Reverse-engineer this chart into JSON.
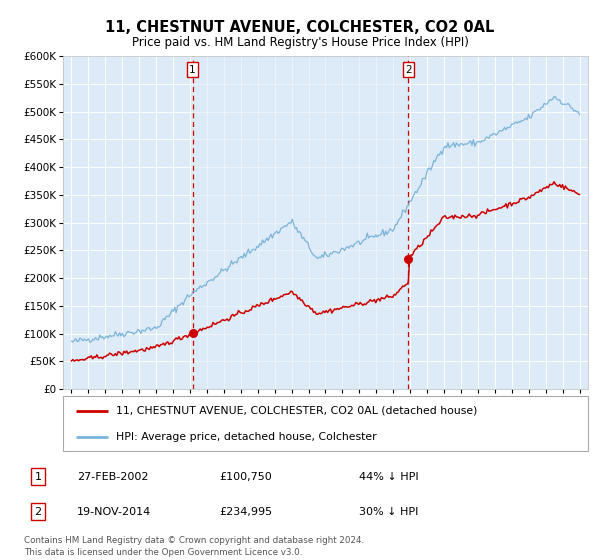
{
  "title": "11, CHESTNUT AVENUE, COLCHESTER, CO2 0AL",
  "subtitle": "Price paid vs. HM Land Registry's House Price Index (HPI)",
  "bg_color": "#ddeaf7",
  "grid_color": "#ffffff",
  "hpi_color": "#7ab4d8",
  "price_color": "#cc0000",
  "marker_color": "#cc0000",
  "vline_color": "#cc0000",
  "sale1_date": 2002.15,
  "sale1_price": 100750,
  "sale2_date": 2014.9,
  "sale2_price": 234995,
  "ylim": [
    0,
    600000
  ],
  "xlim_start": 1994.5,
  "xlim_end": 2025.5,
  "footer": "Contains HM Land Registry data © Crown copyright and database right 2024.\nThis data is licensed under the Open Government Licence v3.0.",
  "legend_line1": "11, CHESTNUT AVENUE, COLCHESTER, CO2 0AL (detached house)",
  "legend_line2": "HPI: Average price, detached house, Colchester",
  "annot1_date": "27-FEB-2002",
  "annot1_price": "£100,750",
  "annot1_hpi": "44% ↓ HPI",
  "annot2_date": "19-NOV-2014",
  "annot2_price": "£234,995",
  "annot2_hpi": "30% ↓ HPI"
}
